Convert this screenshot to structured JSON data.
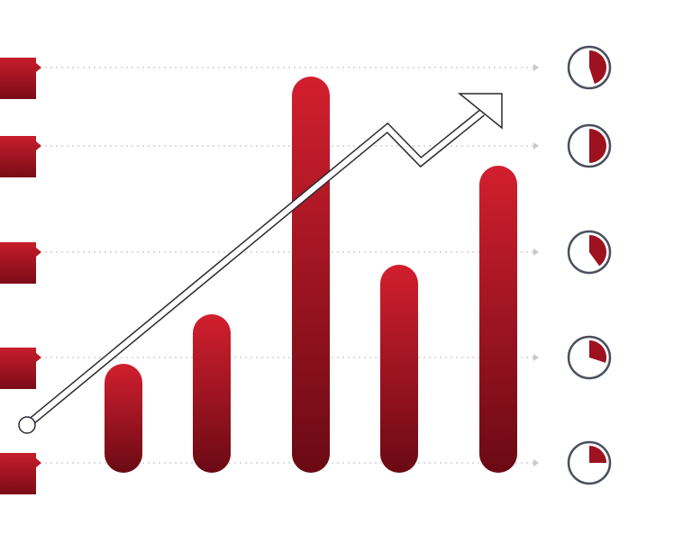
{
  "chart_data": [
    {
      "type": "bar",
      "values": [
        1,
        1.5,
        3.9,
        2,
        3
      ],
      "color": "#c81d2b"
    },
    {
      "type": "pie",
      "values": [
        45,
        50,
        40,
        30,
        25
      ],
      "color": "#9e1220"
    }
  ]
}
